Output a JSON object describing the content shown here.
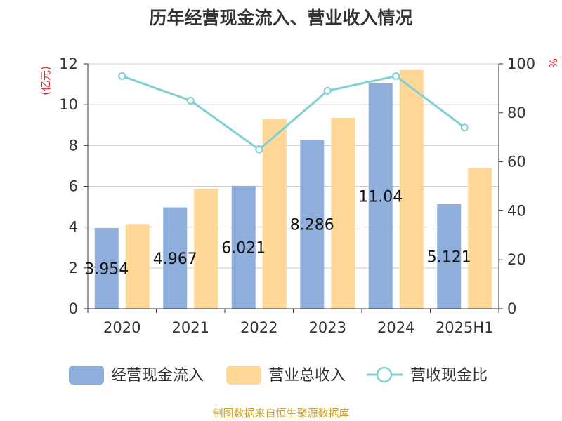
{
  "title": "历年经营现金流入、营业收入情况",
  "source": "制图数据来自恒生聚源数据库",
  "left_unit": "(亿元)",
  "right_unit": "%",
  "colors": {
    "cash_inflow": "#8eaedb",
    "revenue": "#ffd898",
    "ratio_line": "#7fd0d6",
    "unit": "#e8262a",
    "source": "#c9a227"
  },
  "chart_data": {
    "type": "bar",
    "categories": [
      "2020",
      "2021",
      "2022",
      "2023",
      "2024",
      "2025H1"
    ],
    "series": [
      {
        "name": "经营现金流入",
        "axis": "left",
        "kind": "bar",
        "values": [
          3.954,
          4.967,
          6.021,
          8.286,
          11.04,
          5.121
        ],
        "labels": [
          "3.954",
          "4.967",
          "6.021",
          "8.286",
          "11.04",
          "5.121"
        ]
      },
      {
        "name": "营业总收入",
        "axis": "left",
        "kind": "bar",
        "values": [
          4.15,
          5.85,
          9.3,
          9.35,
          11.7,
          6.9
        ]
      },
      {
        "name": "营收现金比",
        "axis": "right",
        "kind": "line",
        "values": [
          95,
          85,
          65,
          89,
          95,
          74
        ]
      }
    ],
    "y_left": {
      "min": 0,
      "max": 12,
      "ticks": [
        "0",
        "2",
        "4",
        "6",
        "8",
        "10",
        "12"
      ]
    },
    "y_right": {
      "min": 0,
      "max": 100,
      "ticks": [
        "0",
        "20",
        "40",
        "60",
        "80",
        "100"
      ]
    },
    "grid": true,
    "legend": "bottom"
  }
}
